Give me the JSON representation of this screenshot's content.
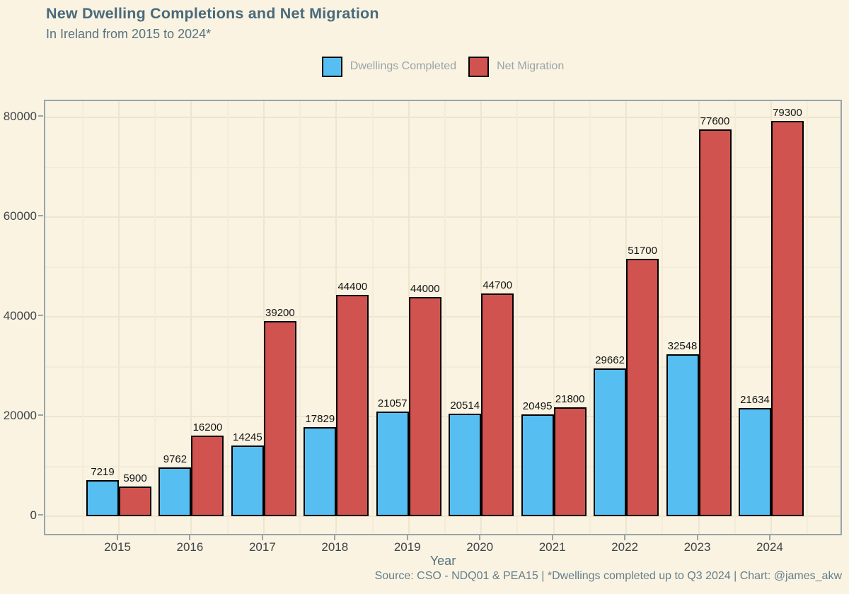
{
  "title": "New Dwelling Completions and Net Migration",
  "subtitle": "In Ireland from 2015 to 2024*",
  "x_axis_title": "Year",
  "caption": "Source: CSO - NDQ01 & PEA15 | *Dwellings completed up to Q3 2024 | Chart: @james_akw",
  "colors": {
    "background": "#FAF3E1",
    "dwellings_blue": "#57BEF1",
    "migration_red": "#D0534F",
    "title_text": "#4A6A7C",
    "panel_border": "#96A5AC"
  },
  "chart_data": {
    "type": "bar",
    "title": "New Dwelling Completions and Net Migration",
    "subtitle": "In Ireland from 2015 to 2024*",
    "xlabel": "Year",
    "ylabel": "",
    "categories": [
      "2015",
      "2016",
      "2017",
      "2018",
      "2019",
      "2020",
      "2021",
      "2022",
      "2023",
      "2024"
    ],
    "series": [
      {
        "name": "Dwellings Completed",
        "color": "#57BEF1",
        "values": [
          7219,
          9762,
          14245,
          17829,
          21057,
          20514,
          20495,
          29662,
          32548,
          21634
        ]
      },
      {
        "name": "Net Migration",
        "color": "#D0534F",
        "values": [
          5900,
          16200,
          39200,
          44400,
          44000,
          44700,
          21800,
          51700,
          77600,
          79300
        ]
      }
    ],
    "y_ticks": [
      0,
      20000,
      40000,
      60000,
      80000
    ],
    "ylim": [
      0,
      83000
    ],
    "grid": true,
    "minor_grid_step": 10000,
    "legend_position": "top",
    "bar_labels": true
  }
}
